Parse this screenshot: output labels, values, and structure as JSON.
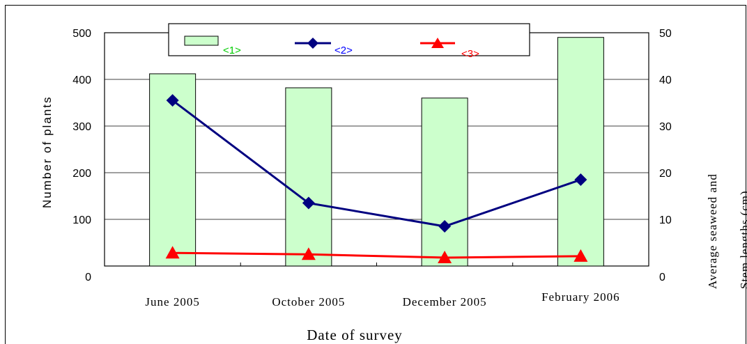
{
  "chart_data": {
    "type": "bar",
    "categories": [
      "June 2005",
      "October 2005",
      "December 2005",
      "February 2006"
    ],
    "xlabel": "Date of survey",
    "ylabel": "Number of plants",
    "ylabel_right": [
      "Average seaweed and",
      "Stem lengths (cm)"
    ],
    "ylim": [
      0,
      500
    ],
    "ylim_right": [
      0,
      50
    ],
    "yticks": [
      "0",
      "100",
      "200",
      "300",
      "400",
      "500"
    ],
    "yticks_right": [
      "0",
      "10",
      "20",
      "30",
      "40",
      "50"
    ],
    "grid": "horizontal",
    "legend_position": "top",
    "series": [
      {
        "name": "<1>",
        "kind": "bar",
        "axis": "left",
        "values": [
          412,
          382,
          360,
          490
        ],
        "color": "#ccffcc",
        "label_color": "#00cc00"
      },
      {
        "name": "<2>",
        "kind": "line",
        "marker": "diamond",
        "axis": "right",
        "values": [
          35.5,
          13.5,
          8.5,
          18.5
        ],
        "color": "#000080",
        "label_color": "#0000ff"
      },
      {
        "name": "<3>",
        "kind": "line",
        "marker": "triangle",
        "axis": "right",
        "values": [
          2.8,
          2.5,
          1.8,
          2.1
        ],
        "color": "#ff0000",
        "label_color": "#ff0000"
      }
    ]
  }
}
